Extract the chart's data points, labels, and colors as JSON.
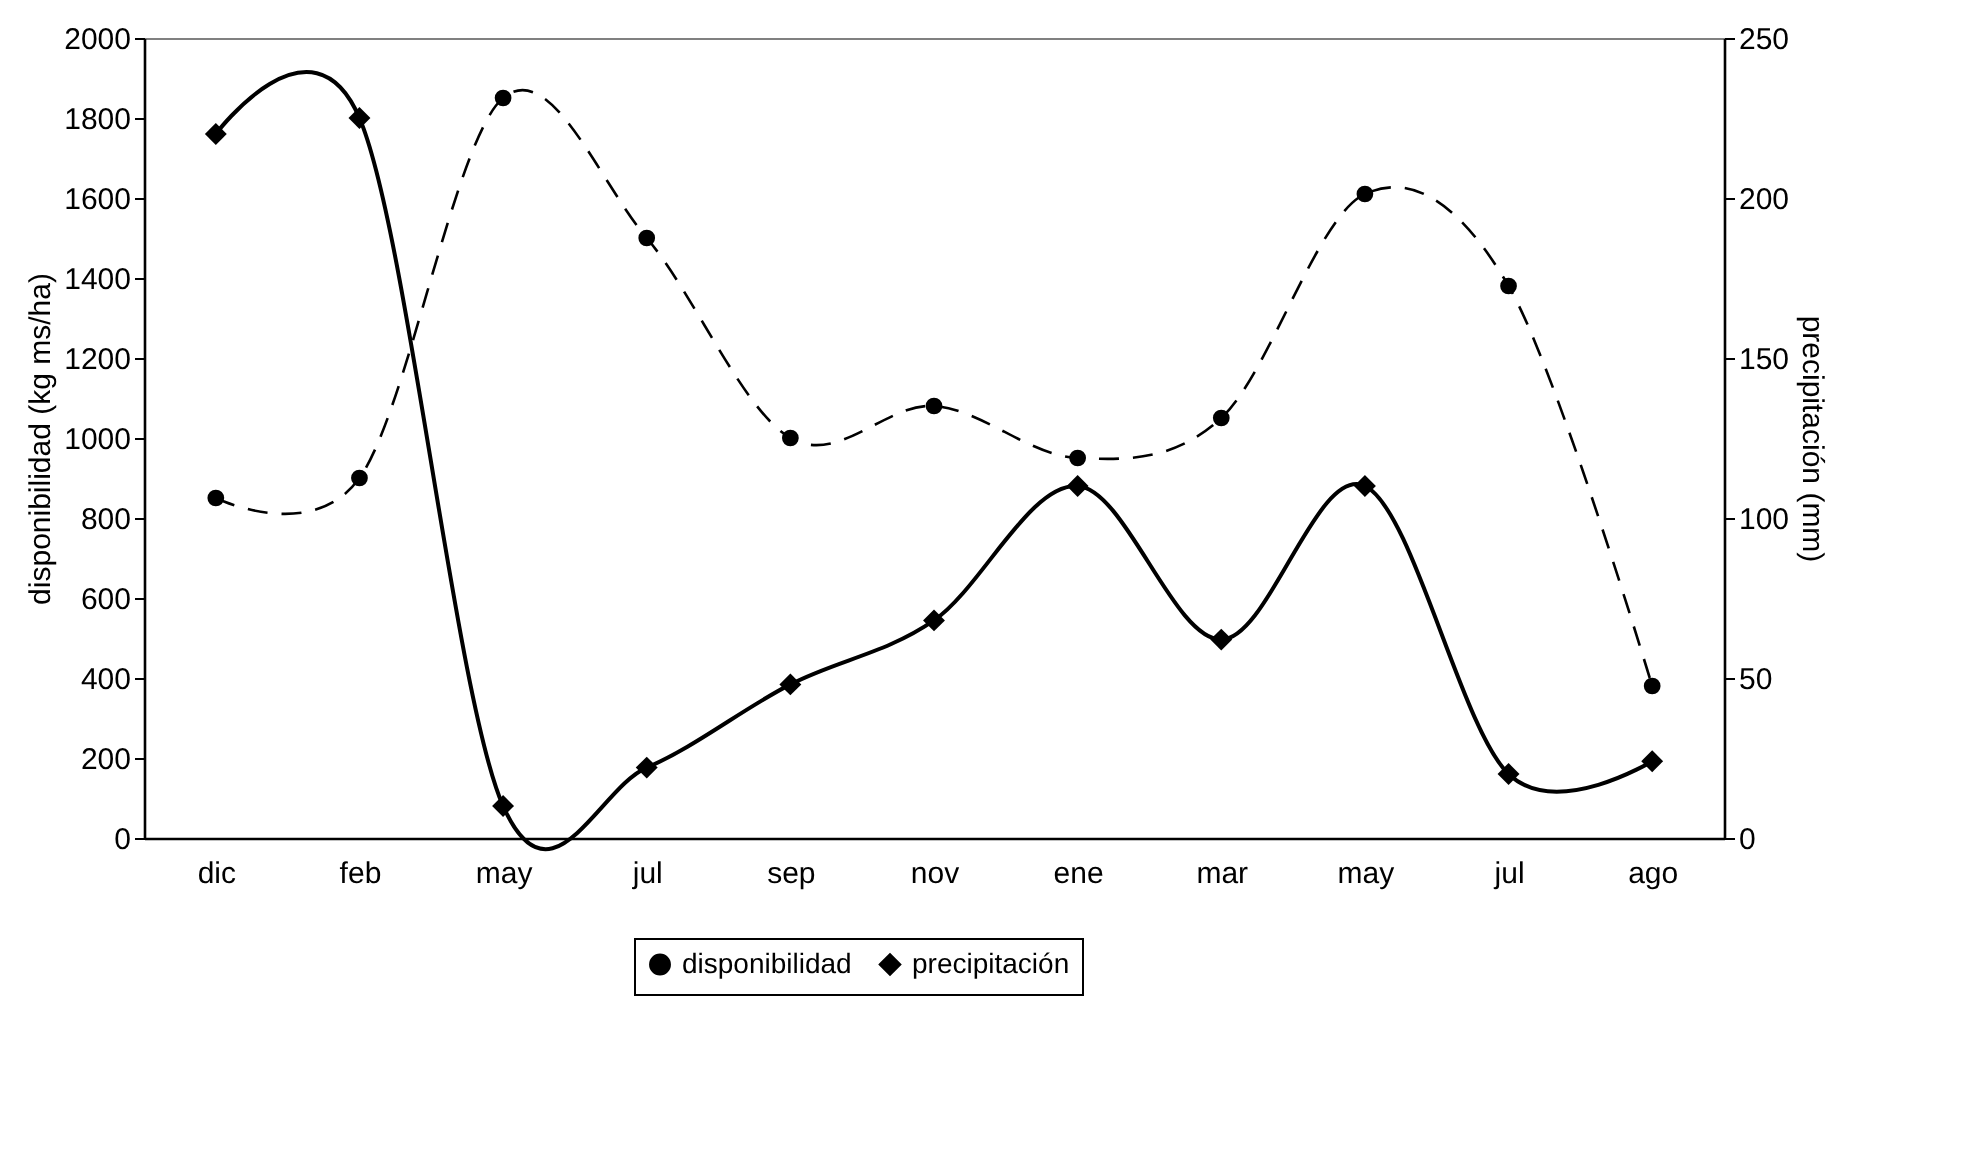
{
  "chart_data": {
    "type": "line",
    "categories": [
      "dic",
      "feb",
      "may",
      "jul",
      "sep",
      "nov",
      "ene",
      "mar",
      "may",
      "jul",
      "ago"
    ],
    "ylabel": "disponibilidad (kg ms/ha)",
    "y2label": "precipitación (mm)",
    "ylim": [
      0,
      2000
    ],
    "yticks": [
      0,
      200,
      400,
      600,
      800,
      1000,
      1200,
      1400,
      1600,
      1800,
      2000
    ],
    "y2lim": [
      0,
      250
    ],
    "y2ticks": [
      0,
      50,
      100,
      150,
      200,
      250
    ],
    "grid": false,
    "legend": "bottom",
    "series": [
      {
        "name": "disponibilidad",
        "color": "#000000",
        "marker": "circle",
        "line_style": "dashed",
        "values": [
          850,
          900,
          1850,
          1500,
          1000,
          1080,
          950,
          1050,
          1610,
          1380,
          380
        ]
      },
      {
        "name": "precipitación",
        "color": "#000000",
        "marker": "diamond",
        "line_style": "solid",
        "axis": "y2",
        "values": [
          220,
          225,
          10,
          22,
          48,
          68,
          110,
          62,
          110,
          20,
          24
        ]
      }
    ]
  }
}
